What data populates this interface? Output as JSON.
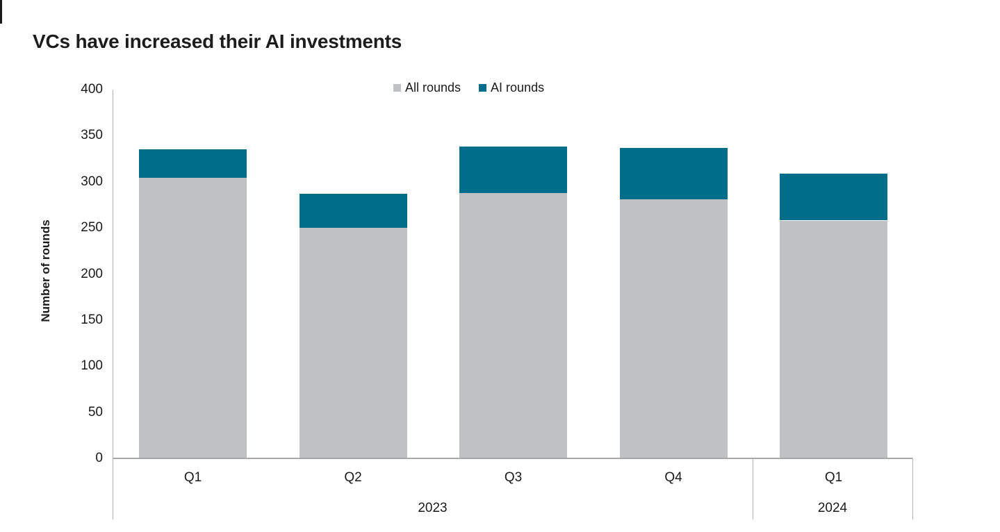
{
  "title": "VCs have increased their AI investments",
  "colors": {
    "all_rounds": "#C0C1C3",
    "ai_rounds": "#006E8A",
    "axis": "#B3B3B3",
    "text": "#1A1A1A"
  },
  "legend": [
    {
      "label": "All rounds",
      "color": "#C0C1C3"
    },
    {
      "label": "AI rounds",
      "color": "#006E8A"
    }
  ],
  "chart_data": {
    "type": "bar",
    "stacked": true,
    "title": "VCs have increased their AI investments",
    "xlabel": "",
    "ylabel": "Number of rounds",
    "ylim": [
      0,
      400
    ],
    "yticks": [
      0,
      50,
      100,
      150,
      200,
      250,
      300,
      350,
      400
    ],
    "grid": false,
    "legend_position": "top-center",
    "categories": [
      "Q1",
      "Q2",
      "Q3",
      "Q4",
      "Q1"
    ],
    "group_labels": [
      {
        "label": "2023",
        "span": [
          0,
          3
        ]
      },
      {
        "label": "2024",
        "span": [
          4,
          4
        ]
      }
    ],
    "series": [
      {
        "name": "All rounds",
        "color": "#C0C1C3",
        "values": [
          304,
          250,
          288,
          281,
          258
        ]
      },
      {
        "name": "AI rounds",
        "color": "#006E8A",
        "values": [
          31,
          37,
          50,
          56,
          51
        ]
      }
    ],
    "totals": [
      335,
      287,
      338,
      337,
      309
    ]
  }
}
